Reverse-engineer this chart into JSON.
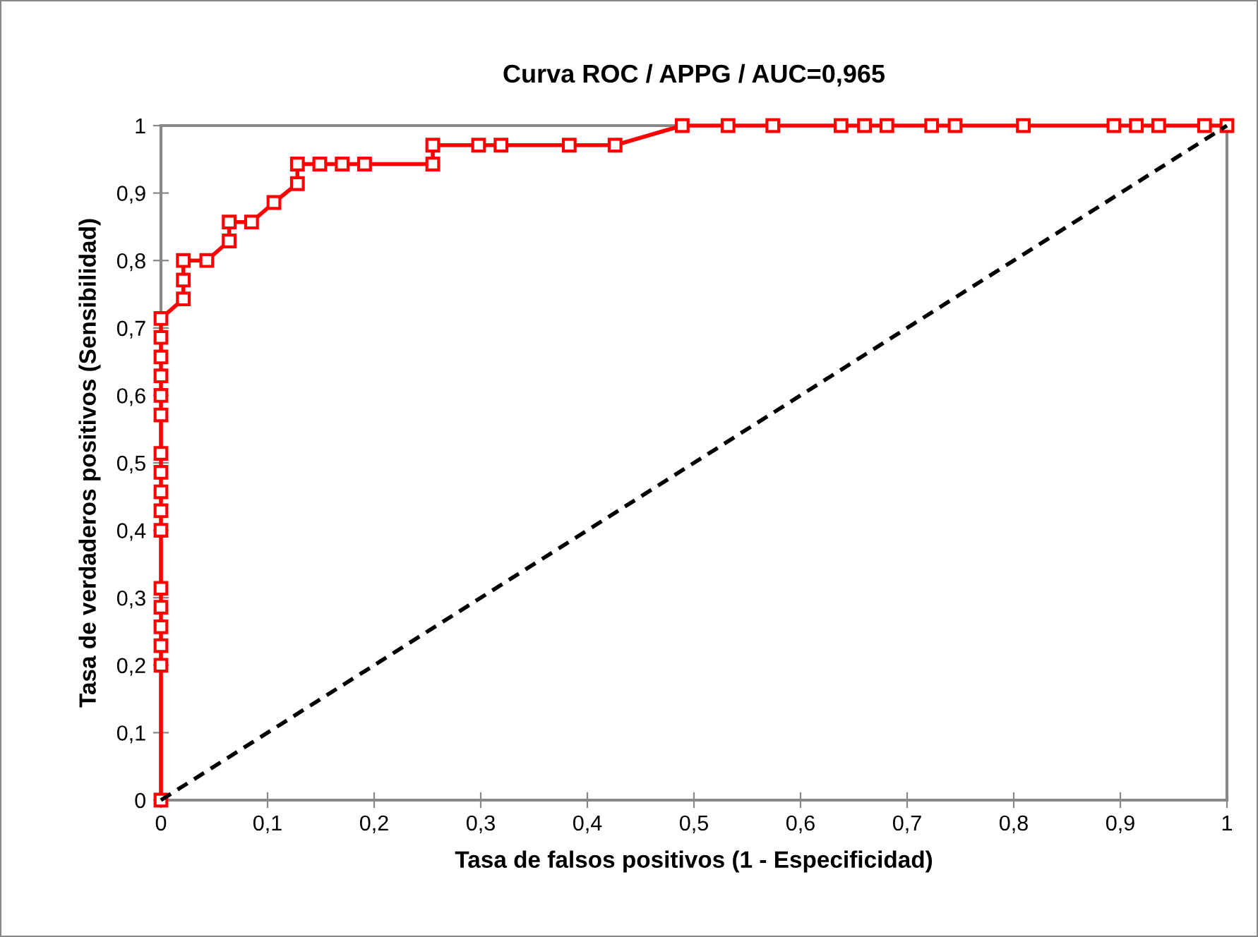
{
  "chart_data": {
    "type": "line",
    "title": "Curva ROC / APPG / AUC=0,965",
    "xlabel": "Tasa de falsos positivos (1 - Especificidad)",
    "ylabel": "Tasa de verdaderos positivos (Sensibilidad)",
    "series": [
      {
        "color": "#ff0000",
        "marker": "square",
        "line_style": "solid",
        "x": [
          0,
          0,
          0,
          0,
          0,
          0,
          0,
          0,
          0,
          0,
          0,
          0,
          0,
          0,
          0,
          0,
          0,
          0.021,
          0.021,
          0.021,
          0.043,
          0.064,
          0.064,
          0.085,
          0.106,
          0.128,
          0.128,
          0.149,
          0.17,
          0.191,
          0.255,
          0.255,
          0.298,
          0.319,
          0.383,
          0.426,
          0.489,
          0.532,
          0.574,
          0.638,
          0.66,
          0.681,
          0.723,
          0.745,
          0.809,
          0.894,
          0.915,
          0.936,
          0.979,
          1
        ],
        "values": [
          0,
          0.2,
          0.229,
          0.257,
          0.286,
          0.314,
          0.4,
          0.429,
          0.457,
          0.486,
          0.514,
          0.571,
          0.6,
          0.629,
          0.657,
          0.686,
          0.714,
          0.743,
          0.771,
          0.8,
          0.8,
          0.829,
          0.857,
          0.857,
          0.886,
          0.914,
          0.943,
          0.943,
          0.943,
          0.943,
          0.943,
          0.971,
          0.971,
          0.971,
          0.971,
          0.971,
          1,
          1,
          1,
          1,
          1,
          1,
          1,
          1,
          1,
          1,
          1,
          1,
          1,
          1
        ]
      },
      {
        "color": "#000000",
        "marker": "none",
        "line_style": "dashed",
        "x": [
          0,
          1
        ],
        "values": [
          0,
          1
        ]
      }
    ],
    "xlim": [
      0,
      1
    ],
    "ylim": [
      0,
      1
    ],
    "xticks": [
      0,
      {
        "value": 0.1,
        "label": "0,1"
      },
      {
        "value": 0.2,
        "label": "0,2"
      },
      {
        "value": 0.3,
        "label": "0,3"
      },
      {
        "value": 0.4,
        "label": "0,4"
      },
      {
        "value": 0.5,
        "label": "0,5"
      },
      {
        "value": 0.6,
        "label": "0,6"
      },
      {
        "value": 0.7,
        "label": "0,7"
      },
      {
        "value": 0.8,
        "label": "0,8"
      },
      {
        "value": 0.9,
        "label": "0,9"
      },
      1
    ],
    "yticks": [
      0,
      {
        "value": 0.1,
        "label": "0,1"
      },
      {
        "value": 0.2,
        "label": "0,2"
      },
      {
        "value": 0.3,
        "label": "0,3"
      },
      {
        "value": 0.4,
        "label": "0,4"
      },
      {
        "value": 0.5,
        "label": "0,5"
      },
      {
        "value": 0.6,
        "label": "0,6"
      },
      {
        "value": 0.7,
        "label": "0,7"
      },
      {
        "value": 0.8,
        "label": "0,8"
      },
      {
        "value": 0.9,
        "label": "0,9"
      },
      1
    ],
    "grid": false,
    "legend": false
  }
}
